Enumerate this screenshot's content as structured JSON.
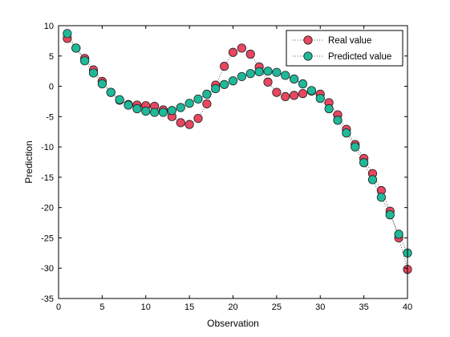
{
  "chart_data": {
    "type": "scatter",
    "xlabel": "Observation",
    "ylabel": "Prediction",
    "xlim": [
      0,
      40
    ],
    "ylim": [
      -35,
      10
    ],
    "xticks": [
      0,
      5,
      10,
      15,
      20,
      25,
      30,
      35,
      40
    ],
    "yticks": [
      10,
      5,
      0,
      -5,
      -10,
      -15,
      -20,
      -25,
      -30,
      -35
    ],
    "grid": false,
    "legend_position": "top-right",
    "x": [
      1,
      2,
      3,
      4,
      5,
      6,
      7,
      8,
      9,
      10,
      11,
      12,
      13,
      14,
      15,
      16,
      17,
      18,
      19,
      20,
      21,
      22,
      23,
      24,
      25,
      26,
      27,
      28,
      29,
      30,
      31,
      32,
      33,
      34,
      35,
      36,
      37,
      38,
      39,
      40
    ],
    "series": [
      {
        "name": "Real value",
        "color": "#e8475f",
        "marker": "circle",
        "line": "dotted",
        "values": [
          7.9,
          6.3,
          4.6,
          2.7,
          0.8,
          -1.0,
          -2.3,
          -3.0,
          -3.1,
          -3.2,
          -3.3,
          -3.9,
          -5.0,
          -6.0,
          -6.3,
          -5.3,
          -2.9,
          0.2,
          3.3,
          5.6,
          6.3,
          5.3,
          3.2,
          0.7,
          -1.0,
          -1.7,
          -1.5,
          -1.2,
          -0.8,
          -1.3,
          -2.7,
          -4.7,
          -7.1,
          -9.6,
          -11.9,
          -14.4,
          -17.2,
          -20.6,
          -25.0,
          -30.2
        ]
      },
      {
        "name": "Predicted value",
        "color": "#1fb99a",
        "marker": "circle",
        "line": "dotted",
        "values": [
          8.7,
          6.3,
          4.2,
          2.2,
          0.4,
          -1.0,
          -2.2,
          -3.1,
          -3.7,
          -4.1,
          -4.3,
          -4.3,
          -4.0,
          -3.5,
          -2.8,
          -2.1,
          -1.3,
          -0.4,
          0.3,
          0.9,
          1.6,
          2.1,
          2.4,
          2.5,
          2.3,
          1.8,
          1.2,
          0.4,
          -0.7,
          -2.0,
          -3.7,
          -5.6,
          -7.7,
          -10.0,
          -12.6,
          -15.4,
          -18.3,
          -21.2,
          -24.4,
          -27.5
        ]
      }
    ]
  }
}
